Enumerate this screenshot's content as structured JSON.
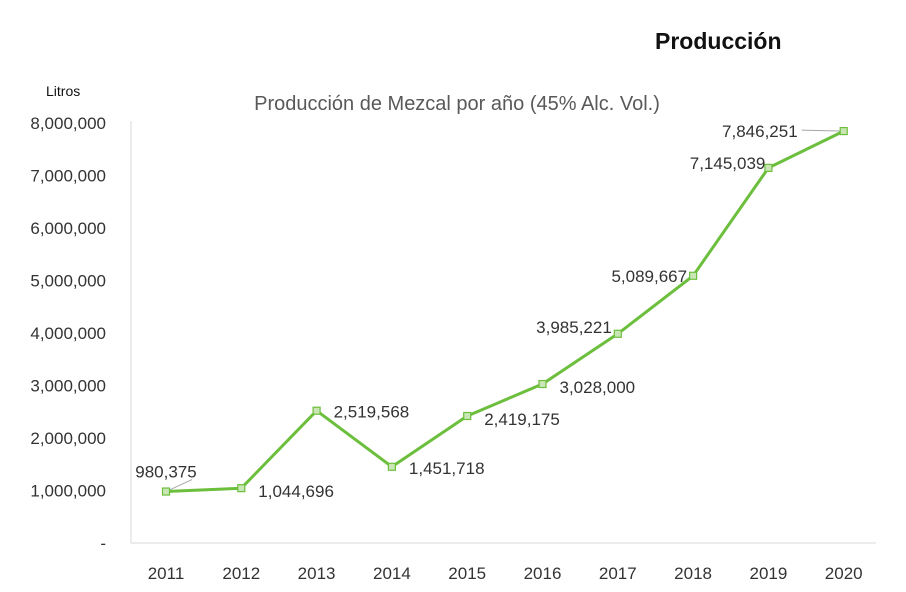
{
  "header": {
    "title": "Producción"
  },
  "chart_data": {
    "type": "line",
    "title": "Producción de Mezcal por año (45% Alc. Vol.)",
    "ylabel": "Litros",
    "xlabel": "",
    "ylim": [
      0,
      8000000
    ],
    "y_ticks": [
      "-",
      "1,000,000",
      "2,000,000",
      "3,000,000",
      "4,000,000",
      "5,000,000",
      "6,000,000",
      "7,000,000",
      "8,000,000"
    ],
    "categories": [
      "2011",
      "2012",
      "2013",
      "2014",
      "2015",
      "2016",
      "2017",
      "2018",
      "2019",
      "2020"
    ],
    "values": [
      980375,
      1044696,
      2519568,
      1451718,
      2419175,
      3028000,
      3985221,
      5089667,
      7145039,
      7846251
    ],
    "data_labels": [
      "980,375",
      "1,044,696",
      "2,519,568",
      "1,451,718",
      "2,419,175",
      "3,028,000",
      "3,985,221",
      "5,089,667",
      "7,145,039",
      "7,846,251"
    ],
    "grid": false,
    "legend": "none",
    "line_color": "#6cbf3c",
    "marker_fill": "#c9e6b4"
  }
}
